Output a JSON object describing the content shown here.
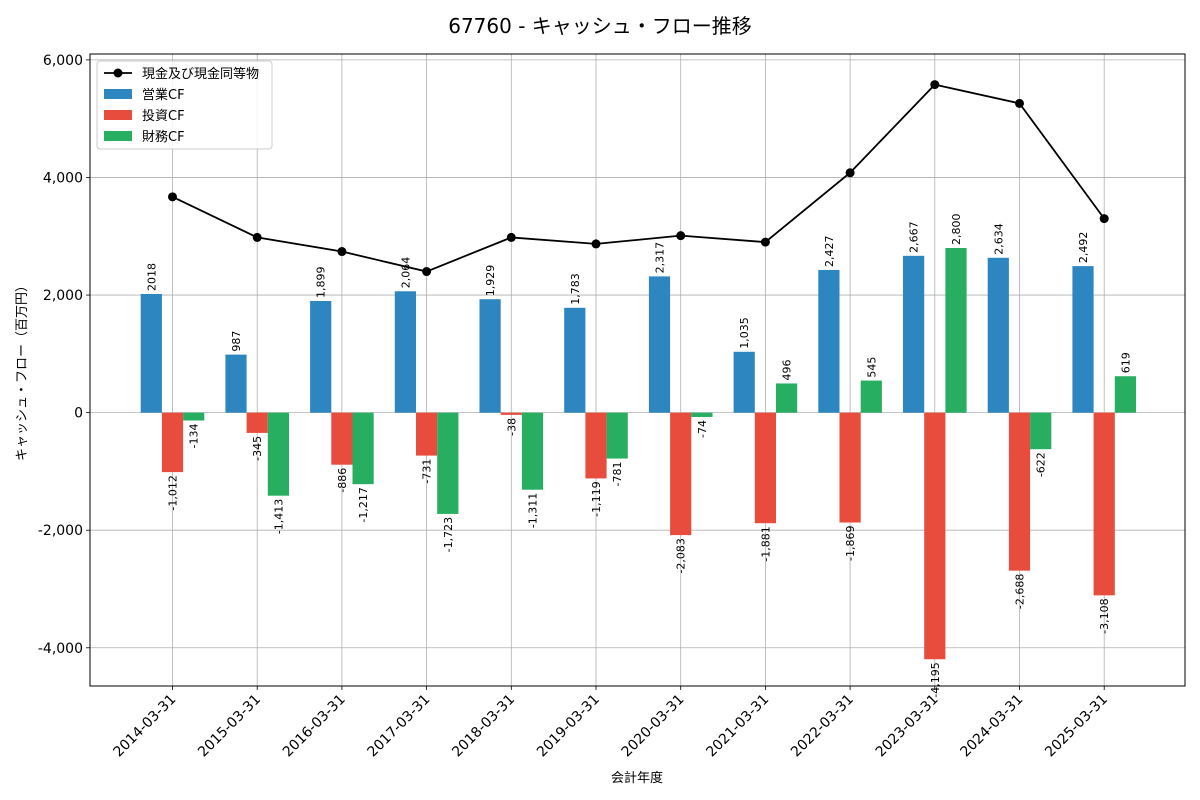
{
  "chart_data": {
    "type": "bar",
    "title": "67760 - キャッシュ・フロー推移",
    "xlabel": "会計年度",
    "ylabel": "キャッシュ・フロー（百万円）",
    "ylim": [
      -4650,
      6100
    ],
    "yticks": [
      -4000,
      -2000,
      0,
      2000,
      4000,
      6000
    ],
    "ytick_labels": [
      "-4,000",
      "-2,000",
      "0",
      "2,000",
      "4,000",
      "6,000"
    ],
    "grid": true,
    "legend_position": "top-left",
    "categories": [
      "2014-03-31",
      "2015-03-31",
      "2016-03-31",
      "2017-03-31",
      "2018-03-31",
      "2019-03-31",
      "2020-03-31",
      "2021-03-31",
      "2022-03-31",
      "2023-03-31",
      "2024-03-31",
      "2025-03-31"
    ],
    "series": [
      {
        "name": "営業CF",
        "kind": "bar",
        "color": "#2e86c1",
        "values": [
          2018,
          987,
          1899,
          2064,
          1929,
          1783,
          2317,
          1035,
          2427,
          2667,
          2634,
          2492
        ],
        "labels": [
          "2018",
          "987",
          "1,899",
          "2,064",
          "1,929",
          "1,783",
          "2,317",
          "1,035",
          "2,427",
          "2,667",
          "2,634",
          "2,492"
        ]
      },
      {
        "name": "投資CF",
        "kind": "bar",
        "color": "#e74c3c",
        "values": [
          -1012,
          -345,
          -886,
          -731,
          -38,
          -1119,
          -2083,
          -1881,
          -1869,
          -4195,
          -2688,
          -3108
        ],
        "labels": [
          "-1,012",
          "-345",
          "-886",
          "-731",
          "-38",
          "-1,119",
          "-2,083",
          "-1,881",
          "-1,869",
          "-4,195",
          "-2,688",
          "-3,108"
        ]
      },
      {
        "name": "財務CF",
        "kind": "bar",
        "color": "#27ae60",
        "values": [
          -134,
          -1413,
          -1217,
          -1723,
          -1311,
          -781,
          -74,
          496,
          545,
          2800,
          -622,
          619
        ],
        "labels": [
          "-134",
          "-1,413",
          "-1,217",
          "-1,723",
          "-1,311",
          "-781",
          "-74",
          "496",
          "545",
          "2,800",
          "-622",
          "619"
        ]
      },
      {
        "name": "現金及び現金同等物",
        "kind": "line",
        "color": "#000000",
        "values": [
          3670,
          2980,
          2740,
          2400,
          2980,
          2870,
          3010,
          2900,
          4080,
          5580,
          5260,
          3300
        ]
      }
    ]
  }
}
